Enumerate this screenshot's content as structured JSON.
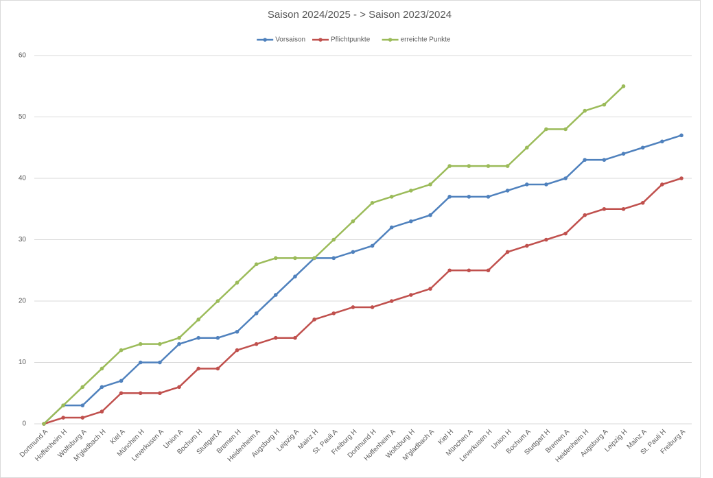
{
  "chart_data": {
    "type": "line",
    "title": "Saison 2024/2025 - > Saison 2023/2024",
    "categories": [
      "Dortmund A",
      "Hoffenheim H",
      "Wolfsburg A",
      "M'gladbach H",
      "Kiel A",
      "München H",
      "Leverkusen A",
      "Union A",
      "Bochum H",
      "Stuttgart A",
      "Bremen H",
      "Heidenheim A",
      "Augsburg H",
      "Leipzig A",
      "Mainz H",
      "St. Pauli A",
      "Freiburg H",
      "Dortmund H",
      "Hoffenheim A",
      "Wolfsburg H",
      "M'gladbach A",
      "Kiel H",
      "München A",
      "Leverkusen H",
      "Union H",
      "Bochum A",
      "Stuttgart H",
      "Bremen A",
      "Heidenheim H",
      "Augsburg A",
      "Leipzig H",
      "Mainz A",
      "St. Pauli H",
      "Freiburg A"
    ],
    "series": [
      {
        "name": "Vorsaison",
        "color": "#4f81bd",
        "values": [
          0,
          3,
          3,
          6,
          7,
          10,
          10,
          13,
          14,
          14,
          15,
          18,
          21,
          24,
          27,
          27,
          28,
          29,
          32,
          33,
          34,
          37,
          37,
          37,
          38,
          39,
          39,
          40,
          43,
          43,
          44,
          45,
          46,
          47
        ]
      },
      {
        "name": "Pflichtpunkte",
        "color": "#c0504d",
        "values": [
          0,
          1,
          1,
          2,
          5,
          5,
          5,
          6,
          9,
          9,
          12,
          13,
          14,
          14,
          17,
          18,
          19,
          19,
          20,
          21,
          22,
          25,
          25,
          25,
          28,
          29,
          30,
          31,
          34,
          35,
          35,
          36,
          39,
          40
        ]
      },
      {
        "name": "erreichte Punkte",
        "color": "#9bbb59",
        "values": [
          0,
          3,
          6,
          9,
          12,
          13,
          13,
          14,
          17,
          20,
          23,
          26,
          27,
          27,
          27,
          30,
          33,
          36,
          37,
          38,
          39,
          42,
          42,
          42,
          42,
          45,
          48,
          48,
          51,
          52,
          55,
          null,
          null,
          null
        ]
      }
    ],
    "ylim": [
      0,
      60
    ],
    "yticks": [
      0,
      10,
      20,
      30,
      40,
      50,
      60
    ],
    "grid": true,
    "legend": "top"
  }
}
